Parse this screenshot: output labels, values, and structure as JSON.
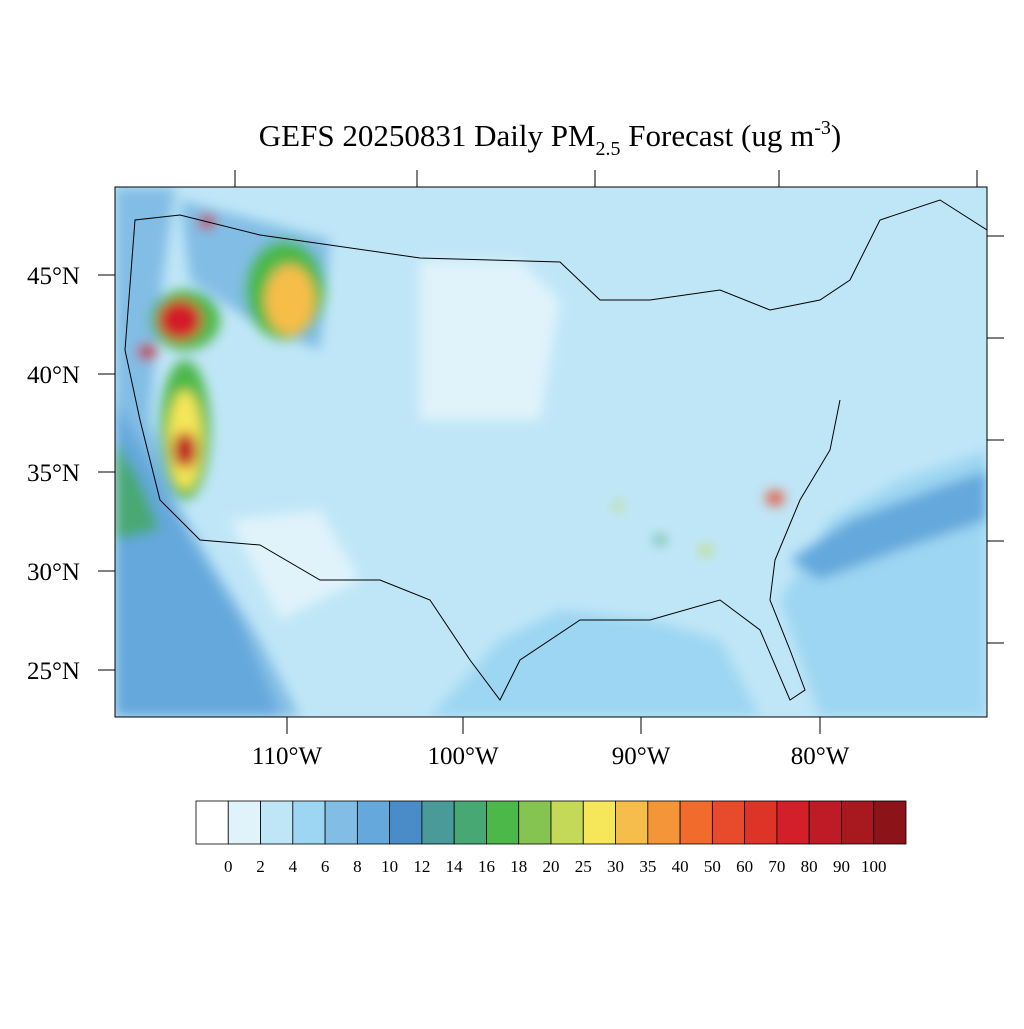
{
  "title": {
    "main": "GEFS 20250831 Daily PM",
    "subscript": "2.5",
    "rest": " Forecast (ug m",
    "superscript": "-3",
    "end": ")"
  },
  "lat_labels": [
    "45°N",
    "40°N",
    "35°N",
    "30°N",
    "25°N"
  ],
  "lon_labels": [
    "110°W",
    "100°W",
    "90°W",
    "80°W"
  ],
  "colorbar": {
    "levels": [
      0,
      2,
      4,
      6,
      8,
      10,
      12,
      14,
      16,
      18,
      20,
      25,
      30,
      35,
      40,
      50,
      60,
      70,
      80,
      90,
      100
    ],
    "colors": [
      "#ffffff",
      "#e0f3fb",
      "#bfe6f7",
      "#9dd6f2",
      "#82bde5",
      "#65a8dc",
      "#4a8cc8",
      "#4a9a9a",
      "#48a873",
      "#4cb84a",
      "#86c452",
      "#c3d957",
      "#f5e65a",
      "#f7bd4a",
      "#f5953a",
      "#f06b2c",
      "#e84b2b",
      "#de3327",
      "#d21f2a",
      "#be1b27",
      "#a8191f",
      "#8c1419"
    ]
  }
}
